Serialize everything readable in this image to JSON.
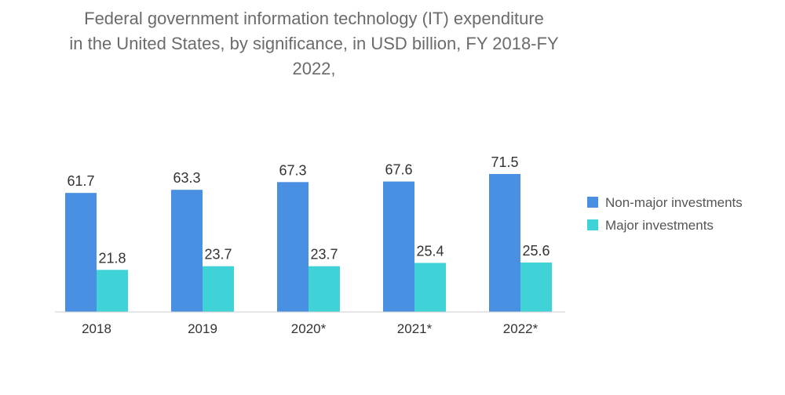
{
  "chart_data": {
    "type": "bar",
    "title": "Federal government information technology (IT) expenditure in the United States, by significance, in USD billion, FY 2018-FY 2022,",
    "title_lines": [
      "Federal government information technology (IT) expenditure",
      "in the United States, by significance, in USD billion, FY 2018-FY",
      "2022,"
    ],
    "categories": [
      "2018",
      "2019",
      "2020*",
      "2021*",
      "2022*"
    ],
    "series": [
      {
        "name": "Non-major investments",
        "values": [
          61.7,
          63.3,
          67.3,
          67.6,
          71.5
        ],
        "labels": [
          "61.7",
          "63.3",
          "67.3",
          "67.6",
          "71.5"
        ],
        "color": "#4a90e2"
      },
      {
        "name": "Major investments",
        "values": [
          21.8,
          23.7,
          23.7,
          25.4,
          25.6
        ],
        "labels": [
          "21.8",
          "23.7",
          "23.7",
          "25.4",
          "25.6"
        ],
        "color": "#3fd3d8"
      }
    ],
    "xlabel": "",
    "ylabel": "",
    "ylim": [
      0,
      71.5
    ],
    "grid": false,
    "legend_position": "right",
    "axis_color": "#cccccc"
  }
}
